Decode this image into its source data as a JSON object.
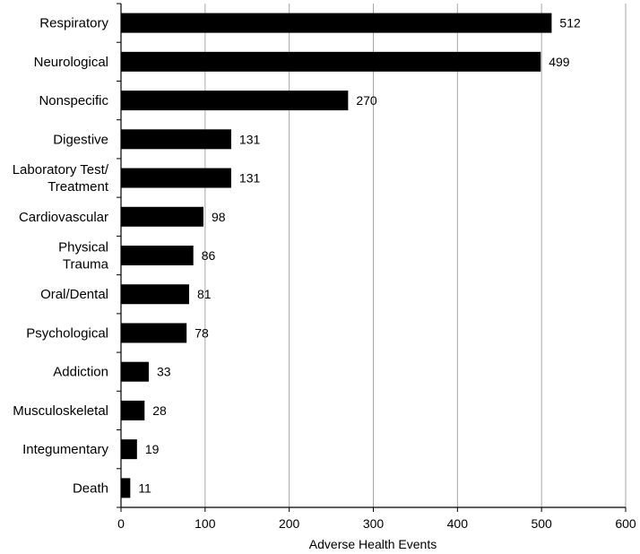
{
  "chart_data": {
    "type": "bar",
    "orientation": "horizontal",
    "categories": [
      [
        "Respiratory"
      ],
      [
        "Neurological"
      ],
      [
        "Nonspecific"
      ],
      [
        "Digestive"
      ],
      [
        "Laboratory Test/",
        "Treatment"
      ],
      [
        "Cardiovascular"
      ],
      [
        "Physical",
        "Trauma"
      ],
      [
        "Oral/Dental"
      ],
      [
        "Psychological"
      ],
      [
        "Addiction"
      ],
      [
        "Musculoskeletal"
      ],
      [
        "Integumentary"
      ],
      [
        "Death"
      ]
    ],
    "values": [
      512,
      499,
      270,
      131,
      131,
      98,
      86,
      81,
      78,
      33,
      28,
      19,
      11
    ],
    "value_labels": [
      "512",
      "499",
      "270",
      "131",
      "131",
      "98",
      "86",
      "81",
      "78",
      "33",
      "28",
      "19",
      "11"
    ],
    "xlabel": "Adverse Health Events",
    "ylabel": "",
    "xlim": [
      0,
      600
    ],
    "xticks": [
      0,
      100,
      200,
      300,
      400,
      500,
      600
    ],
    "grid": "vertical",
    "bar_color": "#000000",
    "grid_color": "#a6a6a6",
    "data_labels": true
  }
}
